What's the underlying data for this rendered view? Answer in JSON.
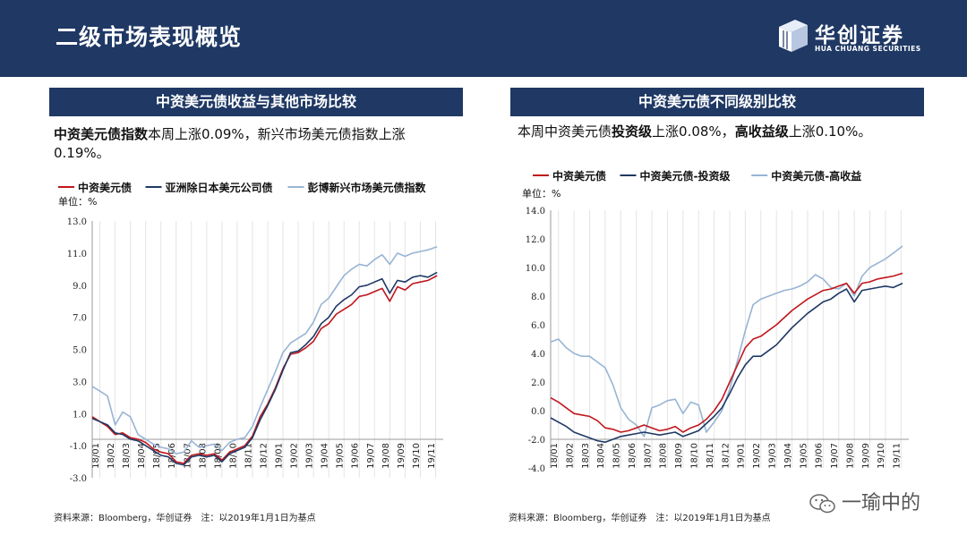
{
  "header": {
    "title": "二级市场表现概览",
    "logo_cn": "华创证券",
    "logo_en": "HUA CHUANG SECURITIES"
  },
  "left": {
    "banner": "中资美元债收益与其他市场比较",
    "lead_bold": "中资美元债指数",
    "lead_rest": "本周上涨0.09%，新兴市场美元债指数上涨0.19%。",
    "source": "资料来源：Bloomberg，华创证券　注：以2019年1月1日为基点"
  },
  "right": {
    "banner": "中资美元债不同级别比较",
    "lead_p1": "本周中资美元债",
    "lead_b1": "投资级",
    "lead_p2": "上涨0.08%，",
    "lead_b2": "高收益级",
    "lead_p3": "上涨0.10%。",
    "source": "资料来源：Bloomberg，华创证券　注：以2019年1月1日为基点"
  },
  "watermark": "一瑜中的",
  "chart_data": [
    {
      "type": "line",
      "unit_label": "单位：%",
      "ylim": [
        -3,
        13
      ],
      "yticks": [
        "-3.0",
        "-1.0",
        "1.0",
        "3.0",
        "5.0",
        "7.0",
        "9.0",
        "11.0",
        "13.0"
      ],
      "xticks": [
        "18/01",
        "18/02",
        "18/03",
        "18/04",
        "18/05",
        "18/06",
        "18/07",
        "18/08",
        "18/09",
        "18/10",
        "18/11",
        "18/12",
        "19/01",
        "19/02",
        "19/03",
        "19/04",
        "19/05",
        "19/06",
        "19/07",
        "19/08",
        "19/09",
        "19/10",
        "19/11"
      ],
      "x": [
        0,
        0.5,
        1,
        1.5,
        2,
        2.5,
        3,
        3.5,
        4,
        4.5,
        5,
        5.5,
        6,
        6.5,
        7,
        7.5,
        8,
        8.5,
        9,
        9.5,
        10,
        10.5,
        11,
        11.5,
        12,
        12.5,
        13,
        13.5,
        14,
        14.5,
        15,
        15.5,
        16,
        16.5,
        17,
        17.5,
        18,
        18.5,
        19,
        19.5,
        20,
        20.5,
        21,
        21.5,
        22,
        22.6
      ],
      "series": [
        {
          "name": "中资美元债",
          "color": "#c0161c",
          "values": [
            0.8,
            0.5,
            0.2,
            -0.3,
            -0.2,
            -0.5,
            -0.6,
            -0.8,
            -1.2,
            -1.4,
            -1.5,
            -2.0,
            -2.1,
            -1.6,
            -1.5,
            -1.6,
            -1.5,
            -1.9,
            -1.4,
            -1.2,
            -1.0,
            -0.4,
            0.8,
            1.6,
            2.6,
            3.8,
            4.7,
            4.8,
            5.1,
            5.5,
            6.3,
            6.6,
            7.2,
            7.5,
            7.8,
            8.3,
            8.4,
            8.6,
            8.8,
            8.0,
            8.9,
            8.7,
            9.1,
            9.2,
            9.3,
            9.6
          ]
        },
        {
          "name": "亚洲除日本美元公司债",
          "color": "#1f3864",
          "values": [
            0.7,
            0.5,
            0.3,
            -0.2,
            -0.3,
            -0.6,
            -0.7,
            -1.0,
            -1.3,
            -1.6,
            -1.7,
            -2.1,
            -2.2,
            -1.7,
            -1.6,
            -1.7,
            -1.6,
            -2.0,
            -1.5,
            -1.3,
            -1.1,
            -0.5,
            0.6,
            1.5,
            2.5,
            3.7,
            4.8,
            4.9,
            5.3,
            5.8,
            6.6,
            7.0,
            7.7,
            8.1,
            8.4,
            8.9,
            9.0,
            9.2,
            9.4,
            8.5,
            9.3,
            9.2,
            9.5,
            9.6,
            9.5,
            9.8
          ]
        },
        {
          "name": "彭博新兴市场美元债指数",
          "color": "#98b4d4",
          "values": [
            2.7,
            2.4,
            2.1,
            0.3,
            1.1,
            0.8,
            -0.3,
            -0.6,
            -0.9,
            -1.1,
            -1.2,
            -1.5,
            -1.4,
            -0.7,
            -1.1,
            -1.0,
            -0.9,
            -1.3,
            -0.8,
            -0.6,
            -0.5,
            0.2,
            1.4,
            2.5,
            3.6,
            4.8,
            5.4,
            5.7,
            6.0,
            6.7,
            7.8,
            8.2,
            8.9,
            9.6,
            10.0,
            10.3,
            10.2,
            10.6,
            10.9,
            10.3,
            11.0,
            10.8,
            11.0,
            11.1,
            11.2,
            11.4
          ]
        }
      ]
    },
    {
      "type": "line",
      "unit_label": "单位：%",
      "ylim": [
        -4,
        14
      ],
      "yticks": [
        "-4.0",
        "-2.0",
        "0.0",
        "2.0",
        "4.0",
        "6.0",
        "8.0",
        "10.0",
        "12.0",
        "14.0"
      ],
      "xticks": [
        "18/01",
        "18/02",
        "18/03",
        "18/04",
        "18/05",
        "18/06",
        "18/07",
        "18/08",
        "18/09",
        "18/10",
        "18/11",
        "18/12",
        "19/01",
        "19/02",
        "19/03",
        "19/04",
        "19/05",
        "19/06",
        "19/07",
        "19/08",
        "19/09",
        "19/10",
        "19/11"
      ],
      "x": [
        0,
        0.5,
        1,
        1.5,
        2,
        2.5,
        3,
        3.5,
        4,
        4.5,
        5,
        5.5,
        6,
        6.5,
        7,
        7.5,
        8,
        8.5,
        9,
        9.5,
        10,
        10.5,
        11,
        11.5,
        12,
        12.5,
        13,
        13.5,
        14,
        14.5,
        15,
        15.5,
        16,
        16.5,
        17,
        17.5,
        18,
        18.5,
        19,
        19.5,
        20,
        20.5,
        21,
        21.5,
        22,
        22.6
      ],
      "series": [
        {
          "name": "中资美元债",
          "color": "#c0161c",
          "values": [
            0.9,
            0.6,
            0.2,
            -0.2,
            -0.3,
            -0.4,
            -0.7,
            -1.2,
            -1.3,
            -1.5,
            -1.4,
            -1.2,
            -1.0,
            -1.2,
            -1.4,
            -1.3,
            -1.1,
            -1.5,
            -1.2,
            -1.0,
            -0.6,
            0.0,
            0.8,
            2.0,
            3.2,
            4.4,
            5.0,
            5.2,
            5.6,
            6.0,
            6.5,
            7.0,
            7.4,
            7.8,
            8.1,
            8.4,
            8.5,
            8.7,
            8.9,
            8.2,
            8.9,
            9.0,
            9.2,
            9.3,
            9.4,
            9.6
          ]
        },
        {
          "name": "中资美元债-投资级",
          "color": "#1f3864",
          "values": [
            -0.5,
            -0.8,
            -1.1,
            -1.5,
            -1.7,
            -1.9,
            -2.1,
            -2.2,
            -2.0,
            -1.8,
            -1.7,
            -1.6,
            -1.5,
            -1.6,
            -1.7,
            -1.6,
            -1.5,
            -1.8,
            -1.6,
            -1.4,
            -0.9,
            -0.4,
            0.2,
            1.2,
            2.3,
            3.2,
            3.8,
            3.8,
            4.2,
            4.6,
            5.2,
            5.8,
            6.3,
            6.8,
            7.2,
            7.6,
            7.8,
            8.2,
            8.5,
            7.6,
            8.4,
            8.5,
            8.6,
            8.7,
            8.6,
            8.9
          ]
        },
        {
          "name": "中资美元债-高收益",
          "color": "#98b4d4",
          "values": [
            4.8,
            5.0,
            4.4,
            4.0,
            3.8,
            3.8,
            3.4,
            3.0,
            1.8,
            0.2,
            -0.6,
            -1.0,
            -1.8,
            0.2,
            0.4,
            0.7,
            0.8,
            -0.2,
            0.6,
            0.4,
            -1.5,
            -0.8,
            0.0,
            1.5,
            3.5,
            5.6,
            7.4,
            7.8,
            8.0,
            8.2,
            8.4,
            8.5,
            8.7,
            9.0,
            9.5,
            9.2,
            8.6,
            8.5,
            8.9,
            8.0,
            9.4,
            10.0,
            10.3,
            10.6,
            11.0,
            11.5
          ]
        }
      ]
    }
  ]
}
